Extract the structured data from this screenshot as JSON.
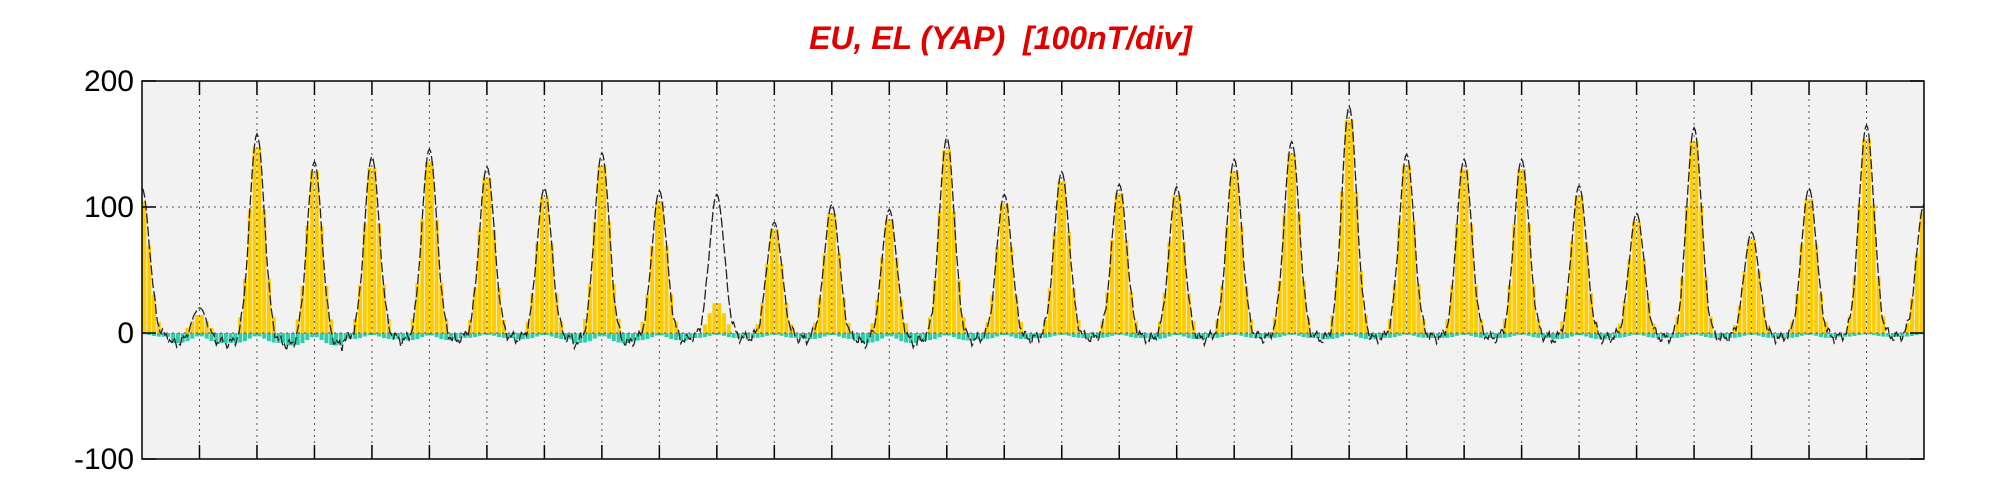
{
  "chart_data": {
    "type": "area",
    "title": "EU, EL (YAP)  [100nT/div]",
    "xlabel": "",
    "ylabel": "",
    "ylim": [
      -100,
      200
    ],
    "yticks": [
      200,
      100,
      0,
      -100
    ],
    "yticklabels": [
      "200",
      "100",
      "0",
      "-100"
    ],
    "x_divisions": 31,
    "grid": true,
    "legend": "none",
    "x_unit": "day",
    "xlim": [
      0,
      31
    ],
    "series": [
      {
        "values": [
          110,
          15,
          155,
          135,
          138,
          143,
          130,
          113,
          140,
          110,
          25,
          87,
          100,
          95,
          153,
          108,
          127,
          117,
          115,
          135,
          150,
          178,
          140,
          137,
          137,
          115,
          93,
          160,
          78,
          112,
          162,
          100
        ]
      },
      {
        "values": [
          -3,
          -8,
          -8,
          -10,
          -5,
          -6,
          -4,
          -5,
          -8,
          -6,
          -4,
          -4,
          -5,
          -8,
          -6,
          -5,
          -4,
          -4,
          -5,
          -4,
          -4,
          -5,
          -4,
          -4,
          -4,
          -5,
          -4,
          -4,
          -4,
          -4,
          -3,
          -3
        ]
      },
      {
        "values": [
          115,
          20,
          158,
          136,
          140,
          146,
          132,
          115,
          143,
          113,
          110,
          88,
          102,
          98,
          155,
          110,
          128,
          118,
          116,
          138,
          152,
          180,
          142,
          138,
          138,
          117,
          95,
          163,
          80,
          115,
          165,
          102
        ]
      }
    ],
    "colors": {
      "eu": "#ffcc00",
      "el": "#33ccaa",
      "line": "#222222",
      "plot_bg": "#f2f2f2",
      "title": "#e00000",
      "grid": "#555555"
    }
  }
}
